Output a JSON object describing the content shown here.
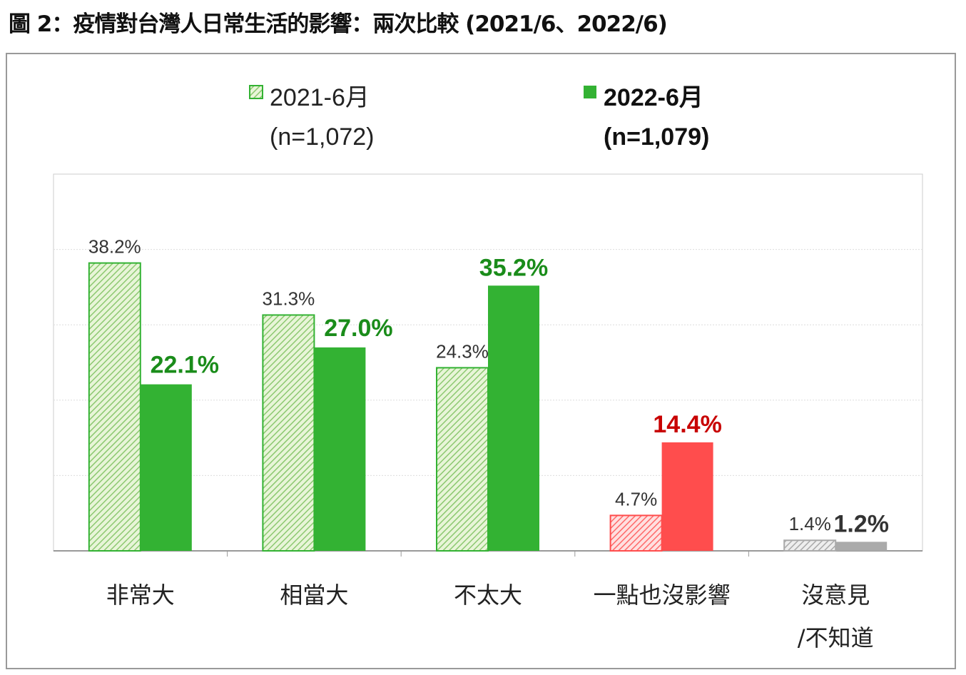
{
  "chart_data": {
    "type": "bar",
    "title": "圖 2：疫情對台灣人日常生活的影響：兩次比較 (2021/6、2022/6)",
    "xlabel": "",
    "ylabel": "",
    "ylim": [
      0,
      50
    ],
    "grid": true,
    "legend_position": "top-center",
    "categories": [
      "非常大",
      "相當大",
      "不太大",
      "一點也沒影響",
      "沒意見\n/不知道"
    ],
    "category_lines": [
      [
        "非常大"
      ],
      [
        "相當大"
      ],
      [
        "不太大"
      ],
      [
        "一點也沒影響"
      ],
      [
        "沒意見",
        "/不知道"
      ]
    ],
    "series": [
      {
        "name": "2021-6月",
        "note": "(n=1,072)",
        "values": [
          38.2,
          31.3,
          24.3,
          4.7,
          1.4
        ],
        "labels": [
          "38.2%",
          "31.3%",
          "24.3%",
          "4.7%",
          "1.4%"
        ],
        "style": "hatched"
      },
      {
        "name": "2022-6月",
        "note": "(n=1,079)",
        "values": [
          22.1,
          27.0,
          35.2,
          14.4,
          1.2
        ],
        "labels": [
          "22.1%",
          "27.0%",
          "35.2%",
          "14.4%",
          "1.2%"
        ],
        "style": "solid"
      }
    ],
    "colors": {
      "green": "#33b233",
      "green_label": "#1a8c1a",
      "red": "#ff4d4d",
      "red_label": "#c80000",
      "gray": "#aaaaaa",
      "gray_label": "#333333"
    }
  }
}
